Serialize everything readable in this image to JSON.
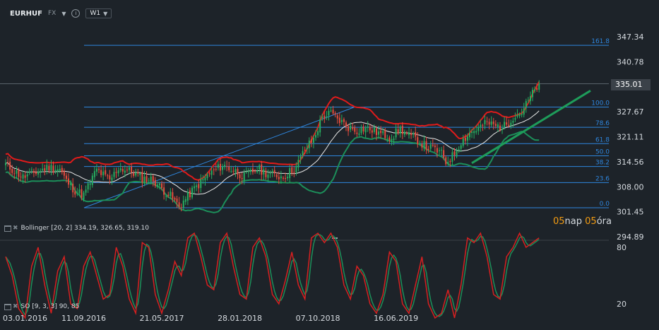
{
  "header": {
    "symbol": "EURHUF",
    "market": "FX",
    "timeframe": "W1"
  },
  "countdown": {
    "days": "05",
    "days_unit": "nap",
    "hours": "05",
    "hours_unit": "óra"
  },
  "indicators": {
    "bollinger": "Bollinger  [20, 2]  334.19,  326.65,  319.10",
    "so": "SO [9, 3, 3]  90, 85"
  },
  "last_price": "335.01",
  "colors": {
    "background": "#1d2329",
    "up_candle": "#27ae60",
    "down_candle": "#e74c3c",
    "bb_upper": "#e01b1b",
    "bb_lower": "#1c8f5a",
    "bb_mid": "#e8e8e8",
    "fib": "#2e86de",
    "trend": "#1e9c5a",
    "so_k": "#d62020",
    "so_d": "#1c8f5a",
    "countdown": "#f39c12"
  },
  "chart_data": [
    {
      "type": "candlestick",
      "y_ticks": [
        "347.34",
        "340.78",
        "335.01",
        "327.67",
        "321.11",
        "314.56",
        "308.00",
        "301.45",
        "294.89"
      ],
      "x_ticks": [
        "03.01.2016",
        "11.09.2016",
        "21.05.2017",
        "28.01.2018",
        "07.10.2018",
        "16.06.2019"
      ],
      "ylim": [
        294.89,
        349
      ],
      "fib_levels": [
        {
          "label": "161.8",
          "value": 345.1
        },
        {
          "label": "100.0",
          "value": 328.9
        },
        {
          "label": "78.6",
          "value": 323.6
        },
        {
          "label": "61.8",
          "value": 319.3
        },
        {
          "label": "50.0",
          "value": 316.1
        },
        {
          "label": "38.2",
          "value": 313.3
        },
        {
          "label": "23.6",
          "value": 309.1
        },
        {
          "label": "0.0",
          "value": 302.5
        }
      ],
      "close_anchors": [
        [
          0,
          313.8
        ],
        [
          8,
          310.5
        ],
        [
          20,
          313.2
        ],
        [
          25,
          312.6
        ],
        [
          28,
          309.5
        ],
        [
          32,
          307.0
        ],
        [
          36,
          305.8
        ],
        [
          42,
          312.5
        ],
        [
          48,
          309.6
        ],
        [
          52,
          313.0
        ],
        [
          58,
          312.0
        ],
        [
          63,
          310.2
        ],
        [
          68,
          309.8
        ],
        [
          72,
          307.5
        ],
        [
          76,
          305.6
        ],
        [
          80,
          302.8
        ],
        [
          86,
          306.9
        ],
        [
          94,
          311.4
        ],
        [
          100,
          313.6
        ],
        [
          106,
          312.1
        ],
        [
          110,
          310.6
        ],
        [
          116,
          312.7
        ],
        [
          122,
          311.2
        ],
        [
          128,
          310.6
        ],
        [
          134,
          313.2
        ],
        [
          138,
          317.8
        ],
        [
          142,
          320.5
        ],
        [
          146,
          326.3
        ],
        [
          150,
          327.2
        ],
        [
          154,
          325.4
        ],
        [
          158,
          323.6
        ],
        [
          162,
          322.8
        ],
        [
          166,
          323.4
        ],
        [
          170,
          322.6
        ],
        [
          174,
          321.6
        ],
        [
          178,
          321.1
        ],
        [
          182,
          323.2
        ],
        [
          186,
          321.3
        ],
        [
          190,
          320.3
        ],
        [
          194,
          318.4
        ],
        [
          198,
          317.8
        ],
        [
          201,
          316.6
        ],
        [
          203,
          314.4
        ],
        [
          206,
          316.0
        ],
        [
          210,
          319.8
        ],
        [
          214,
          322.1
        ],
        [
          218,
          323.4
        ],
        [
          222,
          324.8
        ],
        [
          226,
          323.9
        ],
        [
          230,
          323.9
        ],
        [
          234,
          326.4
        ],
        [
          238,
          327.6
        ],
        [
          242,
          331.5
        ],
        [
          246,
          335.0
        ]
      ]
    },
    {
      "type": "line",
      "name": "SO [9, 3, 3]",
      "y_ticks": [
        "80",
        "20"
      ],
      "ylim": [
        0,
        100
      ],
      "k_anchors": [
        [
          0,
          70
        ],
        [
          3,
          50
        ],
        [
          6,
          15
        ],
        [
          9,
          5
        ],
        [
          12,
          60
        ],
        [
          15,
          80
        ],
        [
          18,
          40
        ],
        [
          21,
          10
        ],
        [
          24,
          55
        ],
        [
          27,
          70
        ],
        [
          30,
          20
        ],
        [
          33,
          15
        ],
        [
          36,
          60
        ],
        [
          39,
          75
        ],
        [
          42,
          50
        ],
        [
          45,
          25
        ],
        [
          48,
          30
        ],
        [
          51,
          80
        ],
        [
          54,
          60
        ],
        [
          57,
          25
        ],
        [
          60,
          10
        ],
        [
          63,
          85
        ],
        [
          66,
          80
        ],
        [
          69,
          30
        ],
        [
          72,
          10
        ],
        [
          75,
          35
        ],
        [
          78,
          65
        ],
        [
          81,
          50
        ],
        [
          84,
          90
        ],
        [
          87,
          95
        ],
        [
          90,
          70
        ],
        [
          93,
          40
        ],
        [
          96,
          35
        ],
        [
          99,
          85
        ],
        [
          102,
          95
        ],
        [
          105,
          60
        ],
        [
          108,
          30
        ],
        [
          111,
          25
        ],
        [
          114,
          80
        ],
        [
          117,
          90
        ],
        [
          120,
          70
        ],
        [
          123,
          30
        ],
        [
          126,
          20
        ],
        [
          129,
          45
        ],
        [
          132,
          75
        ],
        [
          135,
          40
        ],
        [
          138,
          25
        ],
        [
          141,
          90
        ],
        [
          144,
          95
        ],
        [
          147,
          85
        ],
        [
          150,
          95
        ],
        [
          153,
          80
        ],
        [
          156,
          40
        ],
        [
          159,
          25
        ],
        [
          162,
          60
        ],
        [
          165,
          50
        ],
        [
          168,
          20
        ],
        [
          171,
          10
        ],
        [
          174,
          30
        ],
        [
          177,
          75
        ],
        [
          180,
          65
        ],
        [
          183,
          20
        ],
        [
          186,
          10
        ],
        [
          189,
          40
        ],
        [
          192,
          70
        ],
        [
          195,
          20
        ],
        [
          198,
          5
        ],
        [
          201,
          10
        ],
        [
          204,
          35
        ],
        [
          207,
          5
        ],
        [
          210,
          40
        ],
        [
          213,
          90
        ],
        [
          216,
          85
        ],
        [
          219,
          95
        ],
        [
          222,
          70
        ],
        [
          225,
          30
        ],
        [
          228,
          25
        ],
        [
          231,
          70
        ],
        [
          234,
          80
        ],
        [
          237,
          95
        ],
        [
          240,
          80
        ],
        [
          243,
          85
        ],
        [
          246,
          90
        ]
      ]
    }
  ]
}
